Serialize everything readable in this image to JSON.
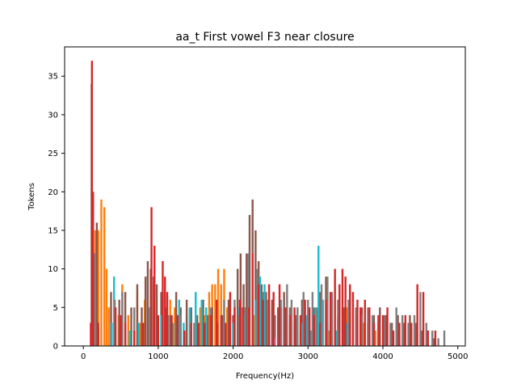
{
  "chart_data": {
    "type": "bar",
    "title": "aa_t First vowel F3 near closure",
    "xlabel": "Frequency(Hz)",
    "ylabel": "Tokens",
    "xlim": [
      -250,
      5100
    ],
    "ylim": [
      0,
      38.8
    ],
    "xticks": [
      0,
      1000,
      2000,
      3000,
      4000,
      5000
    ],
    "yticks": [
      0,
      5,
      10,
      15,
      20,
      25,
      30,
      35
    ],
    "grid": false,
    "legend": "none",
    "bin_width_hz": 26,
    "series": [
      {
        "color": "#ff7f0e",
        "bars": [
          [
            160,
            15
          ],
          [
            200,
            15
          ],
          [
            240,
            19
          ],
          [
            280,
            18
          ],
          [
            310,
            10
          ],
          [
            340,
            5
          ],
          [
            470,
            4
          ],
          [
            520,
            8
          ],
          [
            600,
            4
          ],
          [
            720,
            7
          ],
          [
            760,
            3
          ],
          [
            820,
            6
          ],
          [
            940,
            8
          ],
          [
            1160,
            6
          ],
          [
            1220,
            5
          ],
          [
            1380,
            4
          ],
          [
            1560,
            5
          ],
          [
            1620,
            4
          ],
          [
            1680,
            7
          ],
          [
            1720,
            8
          ],
          [
            1760,
            8
          ],
          [
            1800,
            10
          ],
          [
            1840,
            8
          ],
          [
            1880,
            10
          ],
          [
            1920,
            5
          ],
          [
            1960,
            4
          ],
          [
            2000,
            3
          ],
          [
            2100,
            6
          ],
          [
            2280,
            4
          ],
          [
            2440,
            3
          ],
          [
            2600,
            4
          ],
          [
            2760,
            3
          ],
          [
            2900,
            2
          ],
          [
            3050,
            2
          ],
          [
            3280,
            2
          ],
          [
            3520,
            5
          ],
          [
            3740,
            3
          ],
          [
            3900,
            2
          ],
          [
            4200,
            2
          ],
          [
            4380,
            2
          ]
        ]
      },
      {
        "color": "#8c564b",
        "bars": [
          [
            180,
            16
          ],
          [
            370,
            7
          ],
          [
            410,
            5
          ],
          [
            480,
            6
          ],
          [
            560,
            7
          ],
          [
            640,
            5
          ],
          [
            720,
            8
          ],
          [
            780,
            5
          ],
          [
            830,
            9
          ],
          [
            860,
            11
          ],
          [
            900,
            10
          ],
          [
            940,
            9
          ],
          [
            980,
            8
          ],
          [
            1040,
            7
          ],
          [
            1100,
            5
          ],
          [
            1160,
            4
          ],
          [
            1240,
            7
          ],
          [
            1300,
            5
          ],
          [
            1380,
            6
          ],
          [
            1440,
            5
          ],
          [
            1520,
            4
          ],
          [
            1600,
            6
          ],
          [
            1660,
            4
          ],
          [
            1720,
            5
          ],
          [
            1790,
            3
          ],
          [
            1860,
            4
          ],
          [
            1940,
            6
          ],
          [
            2000,
            4
          ],
          [
            2060,
            10
          ],
          [
            2100,
            12
          ],
          [
            2140,
            8
          ],
          [
            2180,
            12
          ],
          [
            2220,
            17
          ],
          [
            2260,
            19
          ],
          [
            2300,
            15
          ],
          [
            2340,
            11
          ],
          [
            2380,
            8
          ],
          [
            2440,
            7
          ],
          [
            2520,
            6
          ],
          [
            2600,
            5
          ],
          [
            2680,
            7
          ],
          [
            2760,
            5
          ],
          [
            2840,
            4
          ],
          [
            2920,
            6
          ],
          [
            3000,
            4
          ],
          [
            3080,
            5
          ],
          [
            3160,
            7
          ],
          [
            3240,
            9
          ],
          [
            3320,
            6
          ],
          [
            3400,
            4
          ],
          [
            3480,
            5
          ],
          [
            3560,
            7
          ],
          [
            3640,
            4
          ],
          [
            3720,
            5
          ],
          [
            3800,
            3
          ],
          [
            3880,
            4
          ],
          [
            3960,
            5
          ],
          [
            4040,
            4
          ],
          [
            4120,
            3
          ],
          [
            4200,
            4
          ],
          [
            4280,
            3
          ],
          [
            4360,
            4
          ],
          [
            4440,
            3
          ],
          [
            4520,
            2
          ],
          [
            4600,
            2
          ],
          [
            4680,
            1
          ]
        ]
      },
      {
        "color": "#17becf",
        "bars": [
          [
            380,
            3
          ],
          [
            410,
            9
          ],
          [
            620,
            2
          ],
          [
            740,
            3
          ],
          [
            1040,
            4
          ],
          [
            1200,
            3
          ],
          [
            1280,
            6
          ],
          [
            1340,
            3
          ],
          [
            1420,
            5
          ],
          [
            1500,
            7
          ],
          [
            1580,
            6
          ],
          [
            1640,
            5
          ],
          [
            1880,
            4
          ],
          [
            2000,
            3
          ],
          [
            2080,
            5
          ],
          [
            2140,
            4
          ],
          [
            2200,
            3
          ],
          [
            2300,
            6
          ],
          [
            2360,
            9
          ],
          [
            2420,
            8
          ],
          [
            2480,
            5
          ],
          [
            2540,
            4
          ],
          [
            2640,
            6
          ],
          [
            2700,
            4
          ],
          [
            2780,
            3
          ],
          [
            2860,
            5
          ],
          [
            2920,
            3
          ],
          [
            2980,
            4
          ],
          [
            3040,
            2
          ],
          [
            3100,
            5
          ],
          [
            3140,
            13
          ],
          [
            3200,
            6
          ],
          [
            3260,
            3
          ],
          [
            3380,
            2
          ],
          [
            3520,
            3
          ]
        ]
      },
      {
        "color": "#7f7f7f",
        "bars": [
          [
            110,
            34
          ],
          [
            150,
            12
          ],
          [
            420,
            6
          ],
          [
            520,
            7
          ],
          [
            680,
            5
          ],
          [
            880,
            5
          ],
          [
            1060,
            7
          ],
          [
            1130,
            4
          ],
          [
            1300,
            4
          ],
          [
            1480,
            3
          ],
          [
            1700,
            5
          ],
          [
            1880,
            6
          ],
          [
            2020,
            6
          ],
          [
            2080,
            4
          ],
          [
            2160,
            5
          ],
          [
            2200,
            12
          ],
          [
            2320,
            10
          ],
          [
            2400,
            7
          ],
          [
            2460,
            6
          ],
          [
            2560,
            4
          ],
          [
            2640,
            5
          ],
          [
            2720,
            8
          ],
          [
            2780,
            6
          ],
          [
            2860,
            5
          ],
          [
            2940,
            7
          ],
          [
            3000,
            6
          ],
          [
            3060,
            7
          ],
          [
            3120,
            5
          ],
          [
            3180,
            8
          ],
          [
            3260,
            9
          ],
          [
            3320,
            7
          ],
          [
            3400,
            6
          ],
          [
            3460,
            5
          ],
          [
            3540,
            6
          ],
          [
            3640,
            5
          ],
          [
            3720,
            4
          ],
          [
            3800,
            5
          ],
          [
            3860,
            4
          ],
          [
            3940,
            3
          ],
          [
            4020,
            4
          ],
          [
            4100,
            3
          ],
          [
            4180,
            5
          ],
          [
            4260,
            4
          ],
          [
            4340,
            3
          ],
          [
            4420,
            4
          ],
          [
            4500,
            7
          ],
          [
            4580,
            3
          ],
          [
            4660,
            2
          ],
          [
            4740,
            1
          ],
          [
            4820,
            2
          ]
        ]
      },
      {
        "color": "#e377c2",
        "bars": [
          [
            2560,
            1
          ],
          [
            2620,
            1
          ],
          [
            2760,
            1
          ],
          [
            4220,
            1
          ]
        ]
      },
      {
        "color": "#d62728",
        "bars": [
          [
            100,
            3
          ],
          [
            115,
            37
          ],
          [
            130,
            20
          ],
          [
            200,
            3
          ],
          [
            430,
            5
          ],
          [
            500,
            4
          ],
          [
            560,
            3
          ],
          [
            680,
            2
          ],
          [
            800,
            3
          ],
          [
            910,
            18
          ],
          [
            950,
            13
          ],
          [
            1000,
            4
          ],
          [
            1060,
            11
          ],
          [
            1090,
            9
          ],
          [
            1120,
            7
          ],
          [
            1180,
            4
          ],
          [
            1260,
            4
          ],
          [
            1350,
            2
          ],
          [
            1440,
            3
          ],
          [
            1540,
            3
          ],
          [
            1620,
            3
          ],
          [
            1700,
            4
          ],
          [
            1780,
            6
          ],
          [
            1840,
            4
          ],
          [
            1900,
            3
          ],
          [
            1960,
            7
          ],
          [
            2020,
            5
          ],
          [
            2090,
            6
          ],
          [
            2130,
            5
          ],
          [
            2210,
            5
          ],
          [
            2260,
            12
          ],
          [
            2340,
            8
          ],
          [
            2400,
            6
          ],
          [
            2480,
            8
          ],
          [
            2540,
            7
          ],
          [
            2620,
            8
          ],
          [
            2700,
            5
          ],
          [
            2760,
            4
          ],
          [
            2820,
            5
          ],
          [
            2900,
            4
          ],
          [
            2960,
            6
          ],
          [
            3020,
            5
          ],
          [
            3080,
            4
          ],
          [
            3160,
            3
          ],
          [
            3240,
            6
          ],
          [
            3300,
            7
          ],
          [
            3360,
            10
          ],
          [
            3420,
            8
          ],
          [
            3460,
            10
          ],
          [
            3500,
            9
          ],
          [
            3560,
            8
          ],
          [
            3600,
            7
          ],
          [
            3660,
            6
          ],
          [
            3700,
            5
          ],
          [
            3760,
            6
          ],
          [
            3820,
            5
          ],
          [
            3880,
            3
          ],
          [
            3940,
            4
          ],
          [
            4000,
            4
          ],
          [
            4060,
            5
          ],
          [
            4140,
            2
          ],
          [
            4220,
            3
          ],
          [
            4300,
            4
          ],
          [
            4380,
            3
          ],
          [
            4460,
            8
          ],
          [
            4540,
            7
          ],
          [
            4600,
            2
          ],
          [
            4700,
            2
          ]
        ]
      }
    ]
  }
}
